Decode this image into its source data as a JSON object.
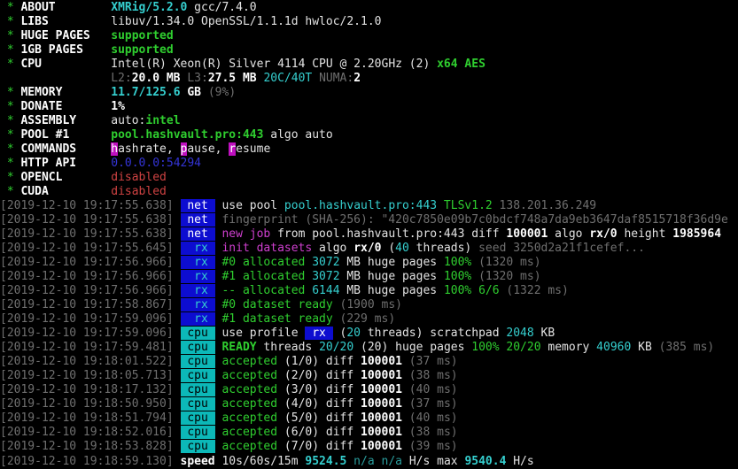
{
  "app": {
    "name": "XMRig",
    "version": "5.2.0",
    "compiler": "gcc/7.4.0",
    "pool": "pool.hashvault.pro:443",
    "api": "0.0.0.0:54294"
  },
  "palette": {
    "bg": "#000000",
    "fg": "#e3e3e3",
    "fgb": "#ffffff",
    "green": "#2fce2f",
    "cyan": "#35cfcf",
    "cyanDim": "#2a9d9d",
    "magenta": "#cf3fcf",
    "red": "#cf4242",
    "gray": "#6f6f6f",
    "blue": "#3434d6",
    "tagBlueBg": "#0d0dd0",
    "tagCyanBg": "#0cb8b8",
    "hotkeyBg": "#bf10bf"
  },
  "terminal": {
    "lines": [
      [
        [
          "g",
          " * "
        ],
        [
          "wb",
          "ABOUT"
        ],
        [
          "w",
          "        "
        ],
        [
          "cb",
          "XMRig/5.2.0"
        ],
        [
          "w",
          " gcc/7.4.0"
        ]
      ],
      [
        [
          "g",
          " * "
        ],
        [
          "wb",
          "LIBS"
        ],
        [
          "w",
          "         "
        ],
        [
          "w",
          "libuv/1.34.0 OpenSSL/1.1.1d hwloc/2.1.0"
        ]
      ],
      [
        [
          "g",
          " * "
        ],
        [
          "wb",
          "HUGE PAGES"
        ],
        [
          "w",
          "   "
        ],
        [
          "gb",
          "supported"
        ]
      ],
      [
        [
          "g",
          " * "
        ],
        [
          "wb",
          "1GB PAGES"
        ],
        [
          "w",
          "    "
        ],
        [
          "gb",
          "supported"
        ]
      ],
      [
        [
          "g",
          " * "
        ],
        [
          "wb",
          "CPU"
        ],
        [
          "w",
          "          "
        ],
        [
          "w",
          "Intel(R) Xeon(R) Silver 4114 CPU @ 2.20GHz (2) "
        ],
        [
          "gb",
          "x64 AES"
        ]
      ],
      [
        [
          "w",
          "                "
        ],
        [
          "d",
          "L2:"
        ],
        [
          "wb",
          "20.0 MB"
        ],
        [
          "d",
          " L3:"
        ],
        [
          "wb",
          "27.5 MB"
        ],
        [
          "c",
          " 20C/40T"
        ],
        [
          "d",
          " NUMA:"
        ],
        [
          "wb",
          "2"
        ]
      ],
      [
        [
          "g",
          " * "
        ],
        [
          "wb",
          "MEMORY"
        ],
        [
          "w",
          "       "
        ],
        [
          "cb",
          "11.7/125.6"
        ],
        [
          "wb",
          " GB "
        ],
        [
          "d",
          "(9%)"
        ]
      ],
      [
        [
          "g",
          " * "
        ],
        [
          "wb",
          "DONATE"
        ],
        [
          "w",
          "       "
        ],
        [
          "wb",
          "1%"
        ]
      ],
      [
        [
          "g",
          " * "
        ],
        [
          "wb",
          "ASSEMBLY"
        ],
        [
          "w",
          "     "
        ],
        [
          "w",
          "auto:"
        ],
        [
          "gb",
          "intel"
        ]
      ],
      [
        [
          "g",
          " * "
        ],
        [
          "wb",
          "POOL #1"
        ],
        [
          "w",
          "      "
        ],
        [
          "gb",
          "pool.hashvault.pro:443"
        ],
        [
          "w",
          " algo auto"
        ]
      ],
      [
        [
          "g",
          " * "
        ],
        [
          "wb",
          "COMMANDS"
        ],
        [
          "w",
          "     "
        ],
        [
          "hk",
          "h"
        ],
        [
          "w",
          "ashrate, "
        ],
        [
          "hk",
          "p"
        ],
        [
          "w",
          "ause, "
        ],
        [
          "hk",
          "r"
        ],
        [
          "w",
          "esume"
        ]
      ],
      [
        [
          "g",
          " * "
        ],
        [
          "wb",
          "HTTP API"
        ],
        [
          "w",
          "     "
        ],
        [
          "bl",
          "0.0.0.0:54294"
        ]
      ],
      [
        [
          "g",
          " * "
        ],
        [
          "wb",
          "OPENCL"
        ],
        [
          "w",
          "       "
        ],
        [
          "r",
          "disabled"
        ]
      ],
      [
        [
          "g",
          " * "
        ],
        [
          "wb",
          "CUDA"
        ],
        [
          "w",
          "         "
        ],
        [
          "r",
          "disabled"
        ]
      ],
      [
        [
          "d",
          "[2019-12-10 19:17:55.638]"
        ],
        [
          "w",
          " "
        ],
        [
          "tag-net",
          " net "
        ],
        [
          "w",
          " use pool "
        ],
        [
          "c",
          "pool.hashvault.pro:443"
        ],
        [
          "g",
          " TLSv1.2"
        ],
        [
          "d",
          " 138.201.36.249"
        ]
      ],
      [
        [
          "d",
          "[2019-12-10 19:17:55.638]"
        ],
        [
          "w",
          " "
        ],
        [
          "tag-net",
          " net "
        ],
        [
          "d",
          " fingerprint (SHA-256): \"420c7850e09b7c0bdcf748a7da9eb3647daf8515718f36d9e"
        ]
      ],
      [
        [
          "d",
          "[2019-12-10 19:17:55.638]"
        ],
        [
          "w",
          " "
        ],
        [
          "tag-net",
          " net "
        ],
        [
          "w",
          " "
        ],
        [
          "m",
          "new job"
        ],
        [
          "w",
          " from pool.hashvault.pro:443 diff "
        ],
        [
          "wb",
          "100001"
        ],
        [
          "w",
          " algo "
        ],
        [
          "wb",
          "rx/0"
        ],
        [
          "w",
          " height "
        ],
        [
          "wb",
          "1985964"
        ]
      ],
      [
        [
          "d",
          "[2019-12-10 19:17:55.645]"
        ],
        [
          "w",
          " "
        ],
        [
          "tag-rx",
          "  rx "
        ],
        [
          "w",
          " "
        ],
        [
          "m",
          "init datasets"
        ],
        [
          "w",
          " algo "
        ],
        [
          "wb",
          "rx/0"
        ],
        [
          "w",
          " ("
        ],
        [
          "c",
          "40"
        ],
        [
          "w",
          " threads) "
        ],
        [
          "d",
          "seed 3250d2a21f1cefef..."
        ]
      ],
      [
        [
          "d",
          "[2019-12-10 19:17:56.966]"
        ],
        [
          "w",
          " "
        ],
        [
          "tag-rx",
          "  rx "
        ],
        [
          "w",
          " "
        ],
        [
          "g",
          "#0 allocated "
        ],
        [
          "c",
          "3072"
        ],
        [
          "w",
          " MB huge pages "
        ],
        [
          "g",
          "100%"
        ],
        [
          "d",
          " (1320 ms)"
        ]
      ],
      [
        [
          "d",
          "[2019-12-10 19:17:56.966]"
        ],
        [
          "w",
          " "
        ],
        [
          "tag-rx",
          "  rx "
        ],
        [
          "w",
          " "
        ],
        [
          "g",
          "#1 allocated "
        ],
        [
          "c",
          "3072"
        ],
        [
          "w",
          " MB huge pages "
        ],
        [
          "g",
          "100%"
        ],
        [
          "d",
          " (1320 ms)"
        ]
      ],
      [
        [
          "d",
          "[2019-12-10 19:17:56.966]"
        ],
        [
          "w",
          " "
        ],
        [
          "tag-rx",
          "  rx "
        ],
        [
          "w",
          " "
        ],
        [
          "g",
          "-- allocated "
        ],
        [
          "c",
          "6144"
        ],
        [
          "w",
          " MB huge pages "
        ],
        [
          "g",
          "100% 6/6"
        ],
        [
          "d",
          " (1322 ms)"
        ]
      ],
      [
        [
          "d",
          "[2019-12-10 19:17:58.867]"
        ],
        [
          "w",
          " "
        ],
        [
          "tag-rx",
          "  rx "
        ],
        [
          "w",
          " "
        ],
        [
          "g",
          "#0 dataset ready "
        ],
        [
          "d",
          "(1900 ms)"
        ]
      ],
      [
        [
          "d",
          "[2019-12-10 19:17:59.096]"
        ],
        [
          "w",
          " "
        ],
        [
          "tag-rx",
          "  rx "
        ],
        [
          "w",
          " "
        ],
        [
          "g",
          "#1 dataset ready "
        ],
        [
          "d",
          "(229 ms)"
        ]
      ],
      [
        [
          "d",
          "[2019-12-10 19:17:59.096]"
        ],
        [
          "w",
          " "
        ],
        [
          "tag-cpu",
          " cpu "
        ],
        [
          "w",
          " use profile "
        ],
        [
          "inv",
          " rx "
        ],
        [
          "w",
          " ("
        ],
        [
          "c",
          "20"
        ],
        [
          "w",
          " threads) scratchpad "
        ],
        [
          "c",
          "2048"
        ],
        [
          "w",
          " KB"
        ]
      ],
      [
        [
          "d",
          "[2019-12-10 19:17:59.481]"
        ],
        [
          "w",
          " "
        ],
        [
          "tag-cpu",
          " cpu "
        ],
        [
          "w",
          " "
        ],
        [
          "gb",
          "READY"
        ],
        [
          "w",
          " threads "
        ],
        [
          "c",
          "20/20"
        ],
        [
          "w",
          " (20) huge pages "
        ],
        [
          "g",
          "100% 20/20"
        ],
        [
          "w",
          " memory "
        ],
        [
          "c",
          "40960"
        ],
        [
          "w",
          " KB "
        ],
        [
          "d",
          "(385 ms)"
        ]
      ],
      [
        [
          "d",
          "[2019-12-10 19:18:01.522]"
        ],
        [
          "w",
          " "
        ],
        [
          "tag-cpu",
          " cpu "
        ],
        [
          "w",
          " "
        ],
        [
          "g",
          "accepted"
        ],
        [
          "w",
          " (1/0) diff "
        ],
        [
          "wb",
          "100001"
        ],
        [
          "d",
          " (37 ms)"
        ]
      ],
      [
        [
          "d",
          "[2019-12-10 19:18:05.713]"
        ],
        [
          "w",
          " "
        ],
        [
          "tag-cpu",
          " cpu "
        ],
        [
          "w",
          " "
        ],
        [
          "g",
          "accepted"
        ],
        [
          "w",
          " (2/0) diff "
        ],
        [
          "wb",
          "100001"
        ],
        [
          "d",
          " (38 ms)"
        ]
      ],
      [
        [
          "d",
          "[2019-12-10 19:18:17.132]"
        ],
        [
          "w",
          " "
        ],
        [
          "tag-cpu",
          " cpu "
        ],
        [
          "w",
          " "
        ],
        [
          "g",
          "accepted"
        ],
        [
          "w",
          " (3/0) diff "
        ],
        [
          "wb",
          "100001"
        ],
        [
          "d",
          " (40 ms)"
        ]
      ],
      [
        [
          "d",
          "[2019-12-10 19:18:50.950]"
        ],
        [
          "w",
          " "
        ],
        [
          "tag-cpu",
          " cpu "
        ],
        [
          "w",
          " "
        ],
        [
          "g",
          "accepted"
        ],
        [
          "w",
          " (4/0) diff "
        ],
        [
          "wb",
          "100001"
        ],
        [
          "d",
          " (37 ms)"
        ]
      ],
      [
        [
          "d",
          "[2019-12-10 19:18:51.794]"
        ],
        [
          "w",
          " "
        ],
        [
          "tag-cpu",
          " cpu "
        ],
        [
          "w",
          " "
        ],
        [
          "g",
          "accepted"
        ],
        [
          "w",
          " (5/0) diff "
        ],
        [
          "wb",
          "100001"
        ],
        [
          "d",
          " (40 ms)"
        ]
      ],
      [
        [
          "d",
          "[2019-12-10 19:18:52.016]"
        ],
        [
          "w",
          " "
        ],
        [
          "tag-cpu",
          " cpu "
        ],
        [
          "w",
          " "
        ],
        [
          "g",
          "accepted"
        ],
        [
          "w",
          " (6/0) diff "
        ],
        [
          "wb",
          "100001"
        ],
        [
          "d",
          " (38 ms)"
        ]
      ],
      [
        [
          "d",
          "[2019-12-10 19:18:53.828]"
        ],
        [
          "w",
          " "
        ],
        [
          "tag-cpu",
          " cpu "
        ],
        [
          "w",
          " "
        ],
        [
          "g",
          "accepted"
        ],
        [
          "w",
          " (7/0) diff "
        ],
        [
          "wb",
          "100001"
        ],
        [
          "d",
          " (39 ms)"
        ]
      ],
      [
        [
          "d",
          "[2019-12-10 19:18:59.130]"
        ],
        [
          "w",
          " "
        ],
        [
          "wb",
          "speed"
        ],
        [
          "w",
          " 10s/60s/15m "
        ],
        [
          "cb",
          "9524.5"
        ],
        [
          "cd",
          " n/a n/a "
        ],
        [
          "w",
          "H/s max "
        ],
        [
          "cb",
          "9540.4"
        ],
        [
          "w",
          " H/s"
        ]
      ]
    ]
  }
}
